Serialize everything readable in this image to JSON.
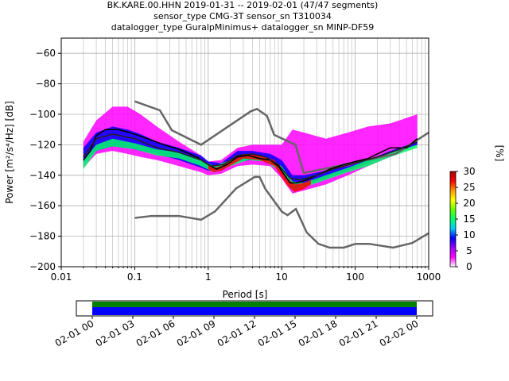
{
  "title_lines": [
    "BK.KARE.00.HHN   2019-01-31 -- 2019-02-01  (47/47 segments)",
    "sensor_type CMG-3T sensor_sn T310034",
    "datalogger_type GuralpMinimus+ datalogger_sn MINP-DF59"
  ],
  "chart_data": {
    "type": "heatmap",
    "title": "BK.KARE.00.HHN   2019-01-31 -- 2019-02-01  (47/47 segments)",
    "xlabel": "Period [s]",
    "ylabel": "Power [m²/s⁴/Hz] [dB]",
    "xscale": "log",
    "xlim": [
      0.01,
      1000
    ],
    "ylim": [
      -200,
      -50
    ],
    "x_ticks": [
      {
        "value": 0.01,
        "label": "0.01"
      },
      {
        "value": 0.1,
        "label": "0.1"
      },
      {
        "value": 1,
        "label": "1"
      },
      {
        "value": 10,
        "label": "10"
      },
      {
        "value": 100,
        "label": "100"
      },
      {
        "value": 1000,
        "label": "1000"
      }
    ],
    "y_ticks": [
      -60,
      -80,
      -100,
      -120,
      -140,
      -160,
      -180,
      -200
    ],
    "grid": true,
    "colorbar": {
      "label": "[%]",
      "min": 0,
      "max": 30,
      "ticks": [
        0,
        5,
        10,
        15,
        20,
        25,
        30
      ],
      "colors": [
        "#ffffff",
        "#ff00ff",
        "#9900ff",
        "#0000ff",
        "#00ccff",
        "#00ff66",
        "#66ff00",
        "#ffff00",
        "#ff9900",
        "#ff0000",
        "#aa0000"
      ]
    },
    "series": [
      {
        "role": "NHNM",
        "color": "#666666",
        "x": [
          0.1,
          0.22,
          0.32,
          0.8,
          3.8,
          4.6,
          6.3,
          7.9,
          15.4,
          20,
          354.8,
          1000
        ],
        "y": [
          -91.5,
          -97.4,
          -110.5,
          -120,
          -98,
          -96.5,
          -101,
          -113.5,
          -120,
          -138.5,
          -126,
          -112
        ]
      },
      {
        "role": "NLNM",
        "color": "#666666",
        "x": [
          0.1,
          0.17,
          0.4,
          0.8,
          1.24,
          2.4,
          4.3,
          5,
          6,
          10,
          12,
          15.6,
          21.9,
          31.6,
          45,
          70,
          101,
          154,
          328,
          600,
          1000
        ],
        "y": [
          -168,
          -166.7,
          -166.7,
          -169.2,
          -163.7,
          -148.6,
          -141.1,
          -141.1,
          -149,
          -163.8,
          -166.2,
          -162.1,
          -177.5,
          -185,
          -187.5,
          -187.5,
          -185,
          -185,
          -187.5,
          -184.4,
          -178
        ]
      },
      {
        "role": "mode",
        "color": "#000000",
        "x": [
          0.02,
          0.025,
          0.03,
          0.04,
          0.06,
          0.1,
          0.15,
          0.25,
          0.4,
          0.7,
          1.0,
          1.3,
          1.8,
          2.5,
          3.5,
          5,
          7,
          9,
          11,
          13,
          16,
          22,
          30,
          45,
          70,
          100,
          150,
          200,
          300,
          500,
          700
        ],
        "y": [
          -130,
          -124,
          -114,
          -110,
          -110,
          -113,
          -116,
          -120,
          -123,
          -128,
          -133,
          -136,
          -133,
          -128,
          -127,
          -129,
          -130,
          -134,
          -140,
          -145,
          -145,
          -143,
          -140,
          -136,
          -133,
          -131,
          -129,
          -126,
          -122,
          -122,
          -116
        ]
      },
      {
        "role": "mean",
        "color": "#222222",
        "x": [
          0.02,
          0.03,
          0.05,
          0.1,
          0.2,
          0.4,
          0.8,
          1.1,
          1.6,
          2.5,
          4,
          6,
          9,
          13,
          18,
          30,
          50,
          100,
          200,
          400,
          700
        ],
        "y": [
          -128,
          -116,
          -113,
          -116,
          -122,
          -125,
          -130,
          -134,
          -133,
          -127,
          -126,
          -128,
          -133,
          -142,
          -143,
          -140,
          -136,
          -132,
          -128,
          -123,
          -118
        ]
      }
    ],
    "density_bands": [
      {
        "level": 5,
        "color": "#ff00ff",
        "x": [
          0.02,
          0.03,
          0.05,
          0.08,
          0.12,
          0.2,
          0.4,
          0.8,
          1.0,
          1.5,
          2.5,
          4,
          7,
          10,
          14,
          20,
          40,
          80,
          150,
          300,
          700
        ],
        "upper": [
          -118,
          -104,
          -95,
          -95,
          -100,
          -108,
          -118,
          -127,
          -131,
          -130,
          -122,
          -120,
          -120,
          -120,
          -110,
          -112,
          -116,
          -112,
          -108,
          -106,
          -100
        ],
        "lower": [
          -135,
          -126,
          -124,
          -126,
          -128,
          -130,
          -134,
          -138,
          -140,
          -139,
          -134,
          -133,
          -134,
          -142,
          -152,
          -150,
          -146,
          -140,
          -134,
          -128,
          -120
        ]
      },
      {
        "level": 10,
        "color": "#0000ff",
        "x": [
          0.02,
          0.03,
          0.05,
          0.08,
          0.12,
          0.2,
          0.4,
          0.8,
          1.0,
          1.5,
          2.5,
          4,
          7,
          10,
          14,
          20,
          40,
          80,
          150,
          300,
          700
        ],
        "upper": [
          -122,
          -112,
          -108,
          -110,
          -113,
          -118,
          -122,
          -127,
          -131,
          -132,
          -124,
          -124,
          -126,
          -130,
          -140,
          -140,
          -137,
          -134,
          -130,
          -124,
          -118
        ],
        "lower": [
          -132,
          -124,
          -121,
          -122,
          -124,
          -126,
          -130,
          -135,
          -137,
          -137,
          -131,
          -130,
          -131,
          -138,
          -150,
          -147,
          -142,
          -137,
          -132,
          -126,
          -120
        ]
      },
      {
        "level": 20,
        "color": "#00ff66",
        "x": [
          0.02,
          0.03,
          0.05,
          0.1,
          0.2,
          0.4,
          0.8,
          1.2,
          2,
          3.5,
          6,
          10,
          14,
          20,
          40,
          80,
          150,
          300,
          700
        ],
        "upper": [
          -130,
          -120,
          -116,
          -119,
          -123,
          -125,
          -130,
          -134,
          -130,
          -127,
          -128,
          -134,
          -144,
          -145,
          -140,
          -135,
          -130,
          -125,
          -120
        ],
        "lower": [
          -136,
          -124,
          -121,
          -123,
          -127,
          -129,
          -134,
          -138,
          -134,
          -130,
          -131,
          -138,
          -150,
          -148,
          -143,
          -138,
          -134,
          -128,
          -122
        ]
      },
      {
        "level": 30,
        "color": "#ff0000",
        "x": [
          1.0,
          1.2,
          1.5,
          3,
          5,
          8,
          12,
          15,
          20,
          25
        ],
        "upper": [
          -133,
          -135,
          -134,
          -126,
          -127,
          -130,
          -142,
          -146,
          -145,
          -143
        ],
        "lower": [
          -136,
          -138,
          -137,
          -129,
          -130,
          -134,
          -147,
          -151,
          -149,
          -146
        ]
      }
    ]
  },
  "timeline": {
    "tick_labels": [
      "02-01 00",
      "02-01 03",
      "02-01 06",
      "02-01 09",
      "02-01 12",
      "02-01 15",
      "02-01 18",
      "02-01 21",
      "02-02 00"
    ],
    "colors": {
      "top": "#008000",
      "bottom": "#0000ff"
    }
  }
}
